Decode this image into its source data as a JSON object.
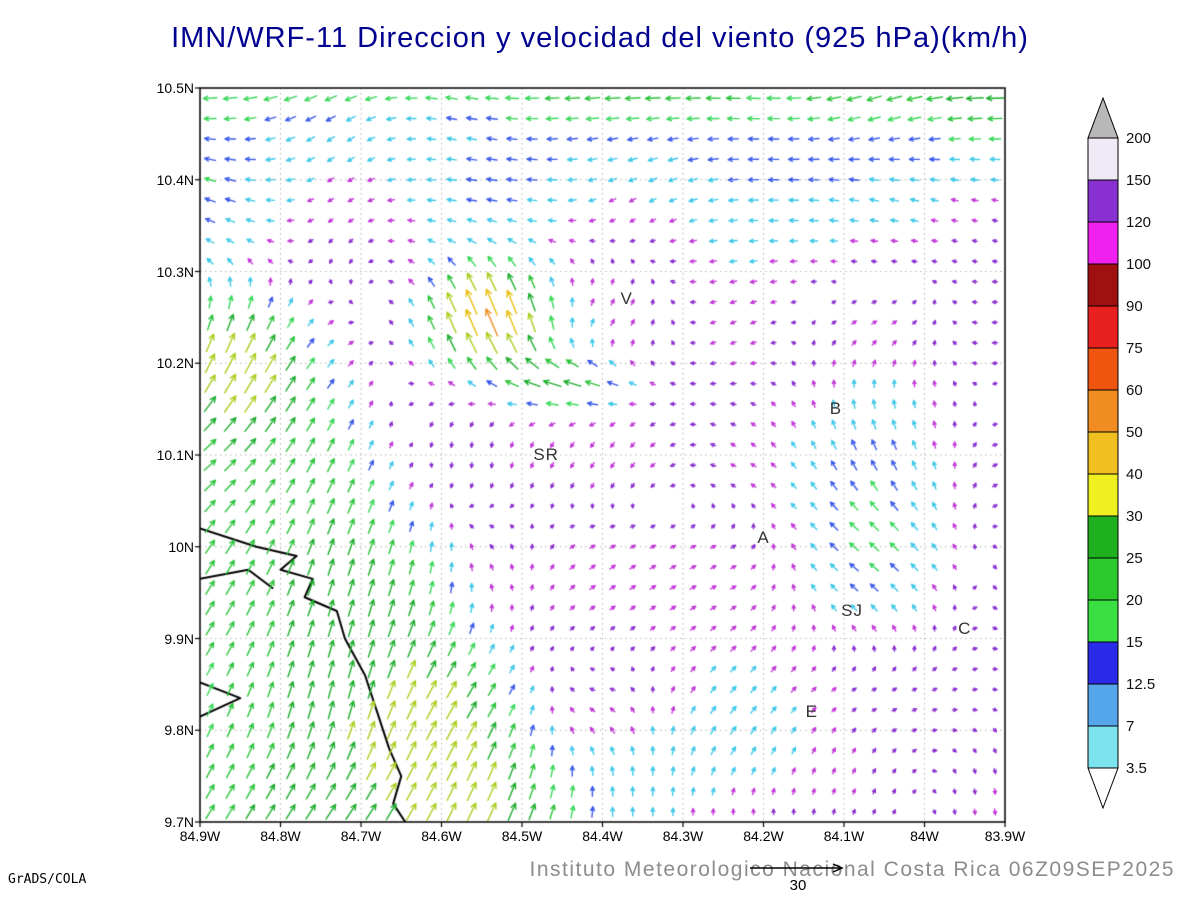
{
  "title": "IMN/WRF-11 Direccion y velocidad del viento (925 hPa)(km/h)",
  "caption": "Instituto Meteorologico Nacional Costa Rica 06Z09SEP2025",
  "credit": "GrADS/COLA",
  "ref_vector": {
    "label": "30"
  },
  "chart_data": {
    "type": "vector_field",
    "model": "IMN/WRF-11",
    "variable": "Direccion y velocidad del viento",
    "level": "925 hPa",
    "units": "km/h",
    "valid_time": "06Z09SEP2025",
    "x_ticks": [
      "84.9W",
      "84.8W",
      "84.7W",
      "84.6W",
      "84.5W",
      "84.4W",
      "84.3W",
      "84.2W",
      "84.1W",
      "84W",
      "83.9W"
    ],
    "y_ticks": [
      "10.5N",
      "10.4N",
      "10.3N",
      "10.2N",
      "10.1N",
      "10N",
      "9.9N",
      "9.8N",
      "9.7N"
    ],
    "lon_range_deg_west": [
      84.9,
      83.9
    ],
    "lat_range_deg_north": [
      9.7,
      10.5
    ],
    "grid": {
      "cols": 40,
      "rows": 36
    },
    "stations": [
      {
        "label": "V",
        "lon_w": 84.37,
        "lat_n": 10.27
      },
      {
        "label": "SR",
        "lon_w": 84.47,
        "lat_n": 10.1
      },
      {
        "label": "B",
        "lon_w": 84.11,
        "lat_n": 10.15
      },
      {
        "label": "A",
        "lon_w": 84.2,
        "lat_n": 10.01
      },
      {
        "label": "SJ",
        "lon_w": 84.09,
        "lat_n": 9.93
      },
      {
        "label": "C",
        "lon_w": 83.95,
        "lat_n": 9.91
      },
      {
        "label": "E",
        "lon_w": 84.14,
        "lat_n": 9.82
      }
    ],
    "colorbar": {
      "ticks": [
        "3.5",
        "7",
        "12.5",
        "15",
        "20",
        "25",
        "30",
        "40",
        "50",
        "60",
        "75",
        "90",
        "100",
        "120",
        "150",
        "200"
      ],
      "band_colors_bottom_to_top": [
        "#7ce4ee",
        "#55a5ea",
        "#2a2ae8",
        "#3ae042",
        "#2cc92c",
        "#1fb01f",
        "#f0f020",
        "#f0c020",
        "#f08c20",
        "#f05510",
        "#e82020",
        "#a01010",
        "#f020f0",
        "#8830d0",
        "#efeaf6"
      ],
      "below_color": "#ffffff",
      "above_color": "#b8b8b8"
    },
    "arrow_speed_colors": [
      {
        "max": 3.5,
        "color": "#8a2fd0"
      },
      {
        "max": 7,
        "color": "#c238d8"
      },
      {
        "max": 12.5,
        "color": "#3fc8e8"
      },
      {
        "max": 15,
        "color": "#3a5ae8"
      },
      {
        "max": 20,
        "color": "#3ad85a"
      },
      {
        "max": 25,
        "color": "#2cc43c"
      },
      {
        "max": 30,
        "color": "#1fae2f"
      },
      {
        "max": 40,
        "color": "#aace20"
      },
      {
        "max": 50,
        "color": "#e8c00f"
      },
      {
        "max": 60,
        "color": "#f08c20"
      },
      {
        "max": 75,
        "color": "#f05510"
      },
      {
        "max": 999,
        "color": "#e82020"
      }
    ],
    "flow_features": [
      {
        "name": "northern-easterlies",
        "region": "north of 10.3N",
        "direction": "east-to-west",
        "speed_kmh": [
          7,
          20
        ]
      },
      {
        "name": "pacific-sw-jet",
        "region": "southwest quadrant and Pacific coast",
        "direction": "southwest-to-northeast",
        "speed_kmh": [
          20,
          40
        ]
      },
      {
        "name": "strong-patch",
        "region": "near 84.55W 10.22N",
        "direction": "toward NNW",
        "speed_kmh": [
          50,
          80
        ]
      },
      {
        "name": "westward-streak",
        "region": "near 84.45W 10.18N",
        "direction": "toward west",
        "speed_kmh": [
          30,
          55
        ]
      },
      {
        "name": "weak-interior",
        "region": "central area",
        "direction": "variable",
        "speed_kmh": [
          1,
          7
        ]
      },
      {
        "name": "moderate-east-side",
        "region": "east of 84.1W mid latitudes",
        "direction": "variable",
        "speed_kmh": [
          10,
          25
        ]
      }
    ],
    "coastline_lonlat_w_n": [
      [
        [
          84.9,
          10.02
        ],
        [
          84.83,
          10.0
        ],
        [
          84.78,
          9.99
        ],
        [
          84.8,
          9.975
        ],
        [
          84.76,
          9.965
        ],
        [
          84.77,
          9.945
        ],
        [
          84.73,
          9.93
        ],
        [
          84.72,
          9.9
        ],
        [
          84.695,
          9.86
        ],
        [
          84.68,
          9.82
        ],
        [
          84.665,
          9.78
        ],
        [
          84.65,
          9.75
        ],
        [
          84.66,
          9.72
        ],
        [
          84.645,
          9.7
        ]
      ],
      [
        [
          84.9,
          9.965
        ],
        [
          84.84,
          9.975
        ],
        [
          84.81,
          9.955
        ]
      ],
      [
        [
          84.9,
          9.815
        ],
        [
          84.85,
          9.835
        ],
        [
          84.9,
          9.852
        ]
      ]
    ]
  }
}
